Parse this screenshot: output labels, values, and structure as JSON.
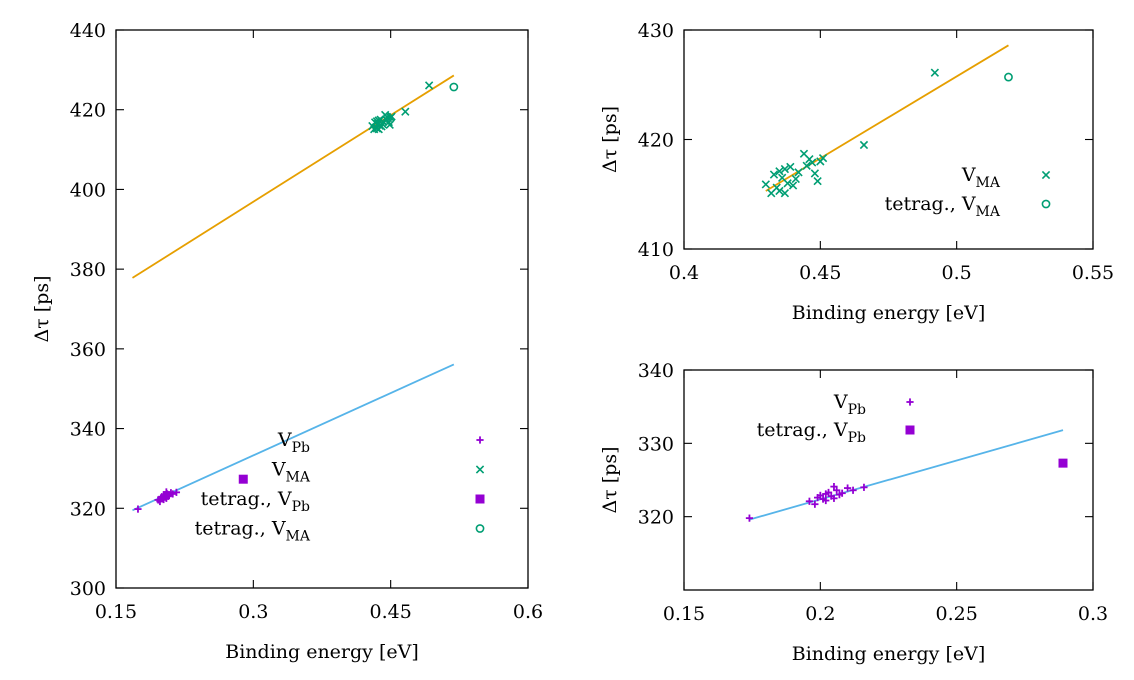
{
  "colors": {
    "vpb": "#9400d3",
    "vma": "#009e73",
    "fit_ma": "#e69f00",
    "fit_pb": "#56b4e9"
  },
  "chart_data": [
    {
      "id": "left",
      "type": "scatter",
      "xlabel": "Binding energy [eV]",
      "ylabel": "Δτ [ps]",
      "xlim": [
        0.15,
        0.6
      ],
      "ylim": [
        300,
        440
      ],
      "xticks": [
        0.15,
        0.3,
        0.45,
        0.6
      ],
      "xtick_labels": [
        "0.15",
        "0.3",
        "0.45",
        "0.6"
      ],
      "yticks": [
        300,
        320,
        340,
        360,
        380,
        400,
        420,
        440
      ],
      "ytick_labels": [
        "300",
        "320",
        "340",
        "360",
        "380",
        "400",
        "420",
        "440"
      ],
      "legend_position": "bottom-right",
      "legend": [
        {
          "base": "V",
          "sub": "Pb",
          "prefix": "",
          "marker": "plus",
          "series": "vpb"
        },
        {
          "base": "V",
          "sub": "MA",
          "prefix": "",
          "marker": "cross",
          "series": "vma"
        },
        {
          "base": "V",
          "sub": "Pb",
          "prefix": "tetrag., ",
          "marker": "square",
          "series": "vpb"
        },
        {
          "base": "V",
          "sub": "MA",
          "prefix": "tetrag., ",
          "marker": "circle",
          "series": "vma"
        }
      ],
      "lines": [
        {
          "name": "fit-ma",
          "color_key": "fit_ma",
          "x": [
            0.168,
            0.519
          ],
          "y": [
            377.8,
            428.6
          ]
        },
        {
          "name": "fit-pb",
          "color_key": "fit_pb",
          "x": [
            0.168,
            0.519
          ],
          "y": [
            319.5,
            356.1
          ]
        }
      ],
      "series": [
        {
          "name": "V_Pb",
          "marker": "plus",
          "color_key": "vpb",
          "x": [
            0.174,
            0.196,
            0.198,
            0.199,
            0.2,
            0.201,
            0.202,
            0.202,
            0.203,
            0.204,
            0.205,
            0.205,
            0.206,
            0.207,
            0.208,
            0.21,
            0.212,
            0.216
          ],
          "y": [
            319.8,
            322.1,
            321.7,
            322.6,
            322.9,
            322.4,
            323.1,
            322.2,
            323.3,
            322.8,
            324.1,
            322.5,
            323.6,
            323.0,
            323.2,
            323.9,
            323.6,
            324.0
          ]
        },
        {
          "name": "V_MA",
          "marker": "cross",
          "color_key": "vma",
          "x": [
            0.43,
            0.432,
            0.433,
            0.434,
            0.435,
            0.435,
            0.436,
            0.437,
            0.437,
            0.438,
            0.439,
            0.44,
            0.441,
            0.442,
            0.444,
            0.445,
            0.446,
            0.447,
            0.448,
            0.449,
            0.45,
            0.451,
            0.466,
            0.492
          ],
          "y": [
            415.9,
            415.1,
            416.8,
            415.6,
            417.1,
            415.3,
            416.5,
            415.1,
            417.3,
            416.0,
            417.5,
            415.8,
            416.4,
            417.0,
            418.7,
            417.6,
            418.2,
            417.9,
            416.9,
            416.2,
            418.0,
            418.3,
            419.5,
            426.1
          ]
        },
        {
          "name": "tetrag. V_Pb",
          "marker": "square",
          "color_key": "vpb",
          "x": [
            0.289
          ],
          "y": [
            327.3
          ]
        },
        {
          "name": "tetrag. V_MA",
          "marker": "circle",
          "color_key": "vma",
          "x": [
            0.519
          ],
          "y": [
            425.7
          ]
        }
      ]
    },
    {
      "id": "top-right",
      "type": "scatter",
      "xlabel": "Binding energy [eV]",
      "ylabel": "Δτ [ps]",
      "xlim": [
        0.4,
        0.55
      ],
      "ylim": [
        410,
        430
      ],
      "xticks": [
        0.4,
        0.45,
        0.5,
        0.55
      ],
      "xtick_labels": [
        "0.4",
        "0.45",
        "0.5",
        "0.55"
      ],
      "yticks": [
        410,
        420,
        430
      ],
      "ytick_labels": [
        "410",
        "420",
        "430"
      ],
      "legend_position": "right",
      "legend": [
        {
          "base": "V",
          "sub": "MA",
          "prefix": "",
          "marker": "cross",
          "series": "vma"
        },
        {
          "base": "V",
          "sub": "MA",
          "prefix": "tetrag., ",
          "marker": "circle",
          "series": "vma"
        }
      ],
      "lines": [
        {
          "name": "fit-ma",
          "color_key": "fit_ma",
          "x": [
            0.43,
            0.519
          ],
          "y": [
            415.3,
            428.6
          ]
        }
      ],
      "series": [
        {
          "name": "V_MA",
          "marker": "cross",
          "color_key": "vma",
          "x": [
            0.43,
            0.432,
            0.433,
            0.434,
            0.435,
            0.435,
            0.436,
            0.437,
            0.437,
            0.438,
            0.439,
            0.44,
            0.441,
            0.442,
            0.444,
            0.445,
            0.446,
            0.447,
            0.448,
            0.449,
            0.45,
            0.451,
            0.466,
            0.492
          ],
          "y": [
            415.9,
            415.1,
            416.8,
            415.6,
            417.1,
            415.3,
            416.5,
            415.1,
            417.3,
            416.0,
            417.5,
            415.8,
            416.4,
            417.0,
            418.7,
            417.6,
            418.2,
            417.9,
            416.9,
            416.2,
            418.0,
            418.3,
            419.5,
            426.1
          ]
        },
        {
          "name": "tetrag. V_MA",
          "marker": "circle",
          "color_key": "vma",
          "x": [
            0.519
          ],
          "y": [
            425.7
          ]
        }
      ]
    },
    {
      "id": "bottom-right",
      "type": "scatter",
      "xlabel": "Binding energy [eV]",
      "ylabel": "Δτ [ps]",
      "xlim": [
        0.15,
        0.3
      ],
      "ylim": [
        310,
        340
      ],
      "xticks": [
        0.15,
        0.2,
        0.25,
        0.3
      ],
      "xtick_labels": [
        "0.15",
        "0.2",
        "0.25",
        "0.3"
      ],
      "yticks": [
        320,
        330,
        340
      ],
      "ytick_labels": [
        "320",
        "330",
        "340"
      ],
      "legend_position": "top-left",
      "legend": [
        {
          "base": "V",
          "sub": "Pb",
          "prefix": "",
          "marker": "plus",
          "series": "vpb"
        },
        {
          "base": "V",
          "sub": "Pb",
          "prefix": "tetrag., ",
          "marker": "square",
          "series": "vpb"
        }
      ],
      "lines": [
        {
          "name": "fit-pb",
          "color_key": "fit_pb",
          "x": [
            0.174,
            0.289
          ],
          "y": [
            319.6,
            331.8
          ]
        }
      ],
      "series": [
        {
          "name": "V_Pb",
          "marker": "plus",
          "color_key": "vpb",
          "x": [
            0.174,
            0.196,
            0.198,
            0.199,
            0.2,
            0.201,
            0.202,
            0.202,
            0.203,
            0.204,
            0.205,
            0.205,
            0.206,
            0.207,
            0.208,
            0.21,
            0.212,
            0.216
          ],
          "y": [
            319.8,
            322.1,
            321.7,
            322.6,
            322.9,
            322.4,
            323.1,
            322.2,
            323.3,
            322.8,
            324.1,
            322.5,
            323.6,
            323.0,
            323.2,
            323.9,
            323.6,
            324.0
          ]
        },
        {
          "name": "tetrag. V_Pb",
          "marker": "square",
          "color_key": "vpb",
          "x": [
            0.289
          ],
          "y": [
            327.3
          ]
        }
      ]
    }
  ]
}
